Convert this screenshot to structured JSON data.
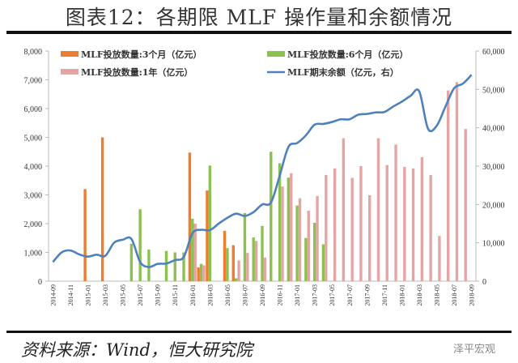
{
  "title": "图表12：各期限 MLF 操作量和余额情况",
  "source": "资料来源：Wind，恒大研究院",
  "watermark": "泽平宏观",
  "chart_data": {
    "type": "bar+line",
    "categories": [
      "2014-09",
      "2014-10",
      "2014-11",
      "2014-12",
      "2015-01",
      "2015-02",
      "2015-03",
      "2015-04",
      "2015-05",
      "2015-06",
      "2015-07",
      "2015-08",
      "2015-09",
      "2015-10",
      "2015-11",
      "2015-12",
      "2016-01",
      "2016-02",
      "2016-03",
      "2016-04",
      "2016-05",
      "2016-06",
      "2016-07",
      "2016-08",
      "2016-09",
      "2016-10",
      "2016-11",
      "2016-12",
      "2017-01",
      "2017-02",
      "2017-03",
      "2017-04",
      "2017-05",
      "2017-06",
      "2017-07",
      "2017-08",
      "2017-09",
      "2017-10",
      "2017-11",
      "2017-12",
      "2018-01",
      "2018-02",
      "2018-03",
      "2018-04",
      "2018-05",
      "2018-06",
      "2018-07",
      "2018-08",
      "2018-09"
    ],
    "tick_labels": [
      "2014-09",
      "2014-11",
      "2015-01",
      "2015-03",
      "2015-05",
      "2015-07",
      "2015-09",
      "2015-11",
      "2016-01",
      "2016-03",
      "2016-05",
      "2016-07",
      "2016-09",
      "2016-11",
      "2017-01",
      "2017-03",
      "2017-05",
      "2017-07",
      "2017-09",
      "2017-11",
      "2018-01",
      "2018-03",
      "2018-05",
      "2018-07",
      "2018-09"
    ],
    "y_left": {
      "range": [
        0,
        8000
      ],
      "ticks": [
        "0",
        "1,000",
        "2,000",
        "3,000",
        "4,000",
        "5,000",
        "6,000",
        "7,000",
        "8,000"
      ]
    },
    "y_right": {
      "range": [
        0,
        60000
      ],
      "ticks": [
        "0",
        "10,000",
        "20,000",
        "30,000",
        "40,000",
        "50,000",
        "60,000"
      ]
    },
    "legend_placement": "top",
    "series": [
      {
        "name": "MLF投放数量:3个月（亿元）",
        "type": "bar",
        "axis": "left",
        "color": "#ED7D31",
        "values": [
          0,
          0,
          0,
          0,
          3200,
          0,
          5000,
          0,
          0,
          0,
          0,
          0,
          0,
          0,
          0,
          0,
          4470,
          480,
          3150,
          0,
          1750,
          1250,
          0,
          0,
          0,
          0,
          0,
          0,
          0,
          0,
          0,
          0,
          0,
          0,
          0,
          0,
          0,
          0,
          0,
          0,
          0,
          0,
          0,
          0,
          0,
          0,
          0,
          0,
          0
        ]
      },
      {
        "name": "MLF投放数量:6个月（亿元）",
        "type": "bar",
        "axis": "left",
        "color": "#8CC152",
        "values": [
          0,
          0,
          0,
          0,
          0,
          0,
          0,
          0,
          0,
          1300,
          2500,
          1100,
          0,
          1050,
          1000,
          1000,
          2170,
          600,
          4020,
          0,
          1150,
          100,
          2370,
          1520,
          1920,
          4500,
          4100,
          3600,
          2630,
          1500,
          2030,
          1280,
          0,
          0,
          0,
          0,
          0,
          0,
          0,
          0,
          0,
          0,
          0,
          0,
          0,
          0,
          0,
          0,
          0
        ]
      },
      {
        "name": "MLF投放数量:1年（亿元）",
        "type": "bar",
        "axis": "left",
        "color": "#E6A5A5",
        "values": [
          0,
          0,
          0,
          0,
          0,
          0,
          0,
          0,
          0,
          0,
          0,
          0,
          0,
          0,
          0,
          0,
          2000,
          550,
          0,
          0,
          0,
          720,
          980,
          1400,
          820,
          0,
          3290,
          3750,
          2880,
          2450,
          2960,
          3690,
          3920,
          4970,
          3590,
          4000,
          2990,
          4970,
          4040,
          4750,
          3970,
          3920,
          4310,
          3690,
          1570,
          6630,
          6920,
          5290,
          0
        ]
      },
      {
        "name": "MLF期末余额（亿元，右）",
        "type": "line",
        "axis": "right",
        "color": "#4F81BD",
        "values": [
          5000,
          7500,
          8000,
          7000,
          6400,
          6900,
          6600,
          10000,
          10800,
          11000,
          5000,
          3700,
          4500,
          4600,
          5500,
          6300,
          12500,
          13400,
          13300,
          15000,
          16500,
          17600,
          17000,
          18000,
          20000,
          20500,
          27500,
          35000,
          36000,
          38000,
          40800,
          41000,
          41500,
          42200,
          42200,
          43400,
          43600,
          44000,
          44100,
          45500,
          46800,
          48300,
          49500,
          39800,
          40500,
          45500,
          50300,
          51500,
          53800
        ]
      }
    ]
  }
}
